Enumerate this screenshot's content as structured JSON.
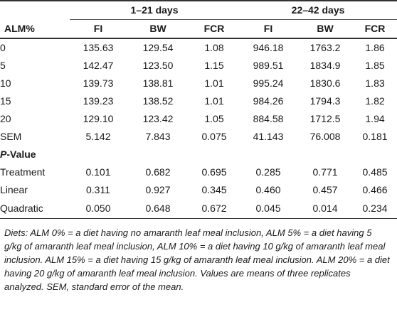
{
  "table": {
    "row_header": "ALM%",
    "groups": [
      {
        "label": "1–21 days"
      },
      {
        "label": "22–42 days"
      }
    ],
    "columns": [
      "FI",
      "BW",
      "FCR",
      "FI",
      "BW",
      "FCR"
    ],
    "rows": [
      {
        "label": "0",
        "values": [
          "135.63",
          "129.54",
          "1.08",
          "946.18",
          "1763.2",
          "1.86"
        ]
      },
      {
        "label": "5",
        "values": [
          "142.47",
          "123.50",
          "1.15",
          "989.51",
          "1834.9",
          "1.85"
        ]
      },
      {
        "label": "10",
        "values": [
          "139.73",
          "138.81",
          "1.01",
          "995.24",
          "1830.6",
          "1.83"
        ]
      },
      {
        "label": "15",
        "values": [
          "139.23",
          "138.52",
          "1.01",
          "984.26",
          "1794.3",
          "1.82"
        ]
      },
      {
        "label": "20",
        "values": [
          "129.10",
          "123.42",
          "1.05",
          "884.58",
          "1712.5",
          "1.94"
        ]
      },
      {
        "label": "SEM",
        "values": [
          "5.142",
          "7.843",
          "0.075",
          "41.143",
          "76.008",
          "0.181"
        ]
      }
    ],
    "pvalue_section": {
      "prefix": "P",
      "suffix": "-Value"
    },
    "pvalue_rows": [
      {
        "label": "Treatment",
        "values": [
          "0.101",
          "0.682",
          "0.695",
          "0.285",
          "0.771",
          "0.485"
        ]
      },
      {
        "label": "Linear",
        "values": [
          "0.311",
          "0.927",
          "0.345",
          "0.460",
          "0.457",
          "0.466"
        ]
      },
      {
        "label": "Quadratic",
        "values": [
          "0.050",
          "0.648",
          "0.672",
          "0.045",
          "0.014",
          "0.234"
        ]
      }
    ]
  },
  "footnote": "Diets: ALM 0% = a diet having no amaranth leaf meal inclusion, ALM 5% = a diet having 5 g/kg of amaranth leaf meal inclusion, ALM 10% = a diet having 10 g/kg of amaranth leaf meal inclusion. ALM 15% = a diet having 15 g/kg of amaranth leaf meal inclusion. ALM 20% = a diet having 20 g/kg of amaranth leaf meal inclusion. Values are means of three replicates analyzed. SEM, standard error of the mean."
}
